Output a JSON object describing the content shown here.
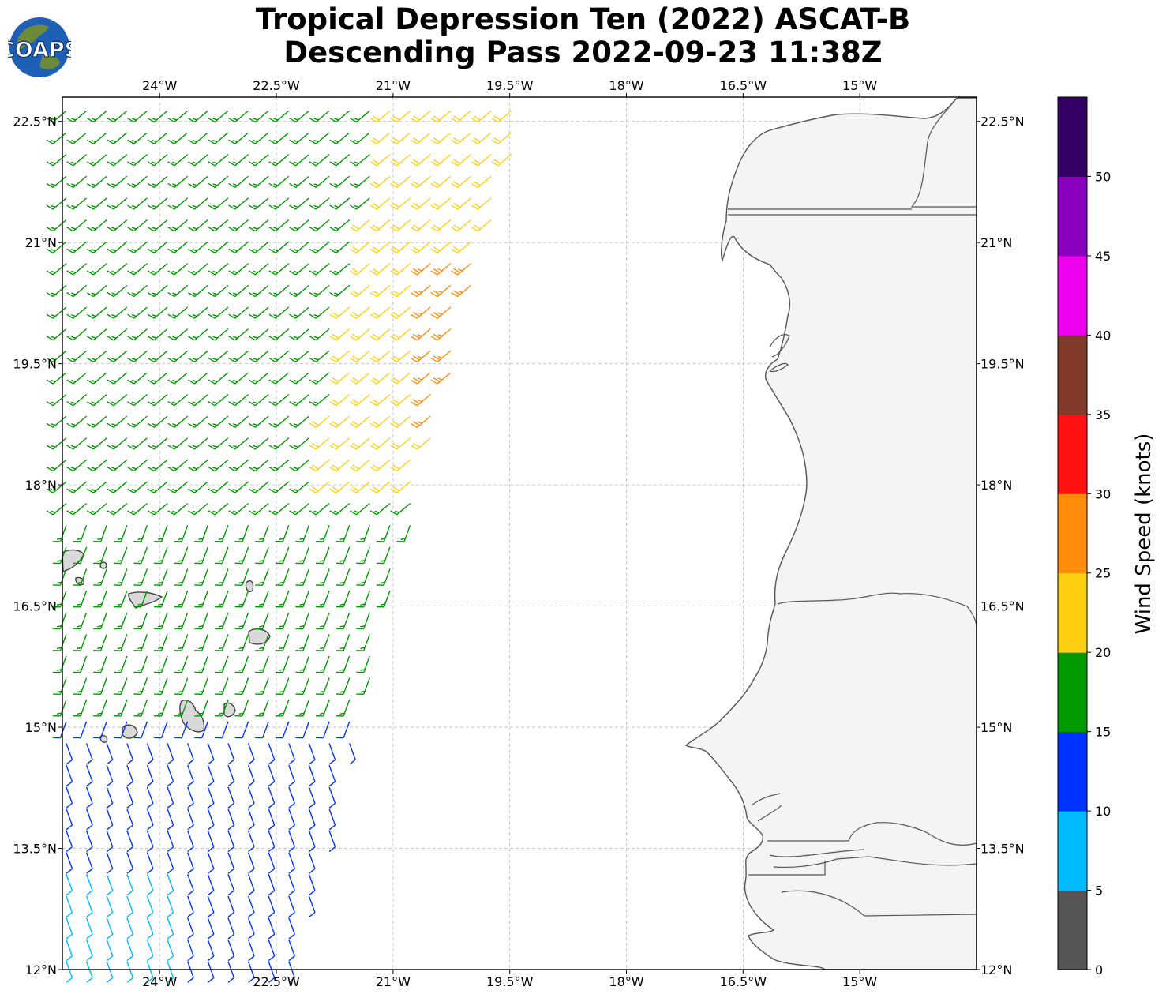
{
  "title": {
    "line1": "Tropical Depression Ten (2022) ASCAT-B",
    "line2": "Descending Pass 2022-09-23 11:38Z"
  },
  "logo": {
    "text": "COAPS",
    "icon": "globe-icon"
  },
  "map": {
    "lon_range": [
      -25.25,
      -13.5
    ],
    "lat_range": [
      12.0,
      22.8
    ],
    "x_ticks": [
      {
        "lon": -24.0,
        "label": "24°W"
      },
      {
        "lon": -22.5,
        "label": "22.5°W"
      },
      {
        "lon": -21.0,
        "label": "21°W"
      },
      {
        "lon": -19.5,
        "label": "19.5°W"
      },
      {
        "lon": -18.0,
        "label": "18°W"
      },
      {
        "lon": -16.5,
        "label": "16.5°W"
      },
      {
        "lon": -15.0,
        "label": "15°W"
      }
    ],
    "y_ticks": [
      {
        "lat": 22.5,
        "label": "22.5°N"
      },
      {
        "lat": 21.0,
        "label": "21°N"
      },
      {
        "lat": 19.5,
        "label": "19.5°N"
      },
      {
        "lat": 18.0,
        "label": "18°N"
      },
      {
        "lat": 16.5,
        "label": "16.5°N"
      },
      {
        "lat": 15.0,
        "label": "15°N"
      },
      {
        "lat": 13.5,
        "label": "13.5°N"
      },
      {
        "lat": 12.0,
        "label": "12°N"
      }
    ],
    "gridlines": true,
    "land_color": "#f4f4f4",
    "coast_color": "#555555"
  },
  "colorbar": {
    "label": "Wind Speed (knots)",
    "bins": [
      {
        "min": 0,
        "max": 5,
        "color": "#555555"
      },
      {
        "min": 5,
        "max": 10,
        "color": "#00bbff"
      },
      {
        "min": 10,
        "max": 15,
        "color": "#0033ff"
      },
      {
        "min": 15,
        "max": 20,
        "color": "#009900"
      },
      {
        "min": 20,
        "max": 25,
        "color": "#ffd011"
      },
      {
        "min": 25,
        "max": 30,
        "color": "#ff8c0b"
      },
      {
        "min": 30,
        "max": 35,
        "color": "#ff1111"
      },
      {
        "min": 35,
        "max": 40,
        "color": "#823b2b"
      },
      {
        "min": 40,
        "max": 45,
        "color": "#ee00ee"
      },
      {
        "min": 45,
        "max": 50,
        "color": "#8800bb"
      },
      {
        "min": 50,
        "max": 55,
        "color": "#330066"
      }
    ],
    "tick_labels": [
      "0",
      "5",
      "10",
      "15",
      "20",
      "25",
      "30",
      "35",
      "40",
      "45",
      "50"
    ]
  },
  "chart_data": {
    "type": "scatter",
    "title": "Tropical Depression Ten (2022) ASCAT-B Descending Pass 2022-09-23 11:38Z",
    "xlabel": "",
    "ylabel": "",
    "units": "knots",
    "field": "wind barbs (speed color-coded)",
    "swath_speed_zones": [
      {
        "region": "west swath north of 18°N",
        "speed_kt": 17
      },
      {
        "region": "east-central swath 18–21°N",
        "speed_kt": 22
      },
      {
        "region": "core near 20°W, 19–21°N",
        "speed_kt": 27
      },
      {
        "region": "swath 15–18°N",
        "speed_kt": 17
      },
      {
        "region": "south of 15°N",
        "speed_kt": 12
      },
      {
        "region": "far southwest near 13°N",
        "speed_kt": 8
      }
    ]
  }
}
